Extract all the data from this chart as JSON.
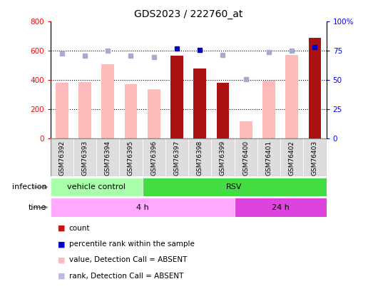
{
  "title": "GDS2023 / 222760_at",
  "samples": [
    "GSM76392",
    "GSM76393",
    "GSM76394",
    "GSM76395",
    "GSM76396",
    "GSM76397",
    "GSM76398",
    "GSM76399",
    "GSM76400",
    "GSM76401",
    "GSM76402",
    "GSM76403"
  ],
  "count_values": [
    null,
    null,
    null,
    null,
    null,
    570,
    480,
    380,
    null,
    null,
    null,
    690
  ],
  "absent_value_bars": [
    380,
    385,
    510,
    375,
    340,
    null,
    null,
    null,
    120,
    395,
    575,
    null
  ],
  "absent_rank_dots_left": [
    580,
    570,
    600,
    570,
    560,
    null,
    null,
    575,
    405,
    590,
    600,
    null
  ],
  "percentile_rank_dots_left": [
    null,
    null,
    null,
    null,
    null,
    615,
    605,
    null,
    null,
    null,
    null,
    625
  ],
  "ylim_left": [
    0,
    800
  ],
  "ylim_right": [
    0,
    100
  ],
  "yticks_left": [
    0,
    200,
    400,
    600,
    800
  ],
  "yticks_right": [
    0,
    25,
    50,
    75,
    100
  ],
  "ytick_labels_left": [
    "0",
    "200",
    "400",
    "600",
    "800"
  ],
  "ytick_labels_right": [
    "0",
    "25",
    "50",
    "75",
    "100%"
  ],
  "grid_lines": [
    200,
    400,
    600
  ],
  "infection_groups": [
    {
      "label": "vehicle control",
      "start": 0,
      "end": 4,
      "color": "#aaffaa"
    },
    {
      "label": "RSV",
      "start": 4,
      "end": 12,
      "color": "#44dd44"
    }
  ],
  "time_groups": [
    {
      "label": "4 h",
      "start": 0,
      "end": 8,
      "color": "#ffaaff"
    },
    {
      "label": "24 h",
      "start": 8,
      "end": 12,
      "color": "#dd44dd"
    }
  ],
  "legend_items": [
    {
      "color": "#cc1111",
      "label": "count"
    },
    {
      "color": "#0000cc",
      "label": "percentile rank within the sample"
    },
    {
      "color": "#ffbbbb",
      "label": "value, Detection Call = ABSENT"
    },
    {
      "color": "#bbbbdd",
      "label": "rank, Detection Call = ABSENT"
    }
  ],
  "bar_width": 0.55,
  "count_color": "#aa1111",
  "absent_value_color": "#ffbbbb",
  "absent_rank_color": "#aaaacc",
  "percentile_rank_color": "#0000cc",
  "plot_bg_color": "#ffffff",
  "sample_bg_color": "#dddddd"
}
